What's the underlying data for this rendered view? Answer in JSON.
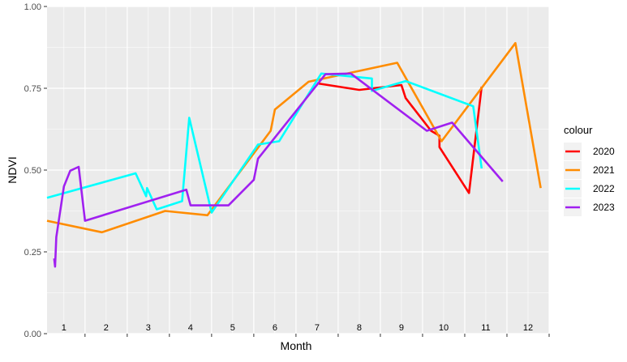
{
  "chart_data": {
    "type": "line",
    "title": "",
    "xlabel": "Month",
    "ylabel": "NDVI",
    "ylim": [
      0,
      1
    ],
    "xlim": [
      0.6,
      12.5
    ],
    "y_ticks": [
      "0.00",
      "0.25",
      "0.50",
      "0.75",
      "1.00"
    ],
    "x_ticks": [
      "1",
      "2",
      "3",
      "4",
      "5",
      "6",
      "7",
      "8",
      "9",
      "10",
      "11",
      "12"
    ],
    "grid": true,
    "legend_title": "colour",
    "legend_position": "right",
    "series": [
      {
        "name": "2020",
        "color": "#FF0000",
        "points": [
          [
            7,
            0.765
          ],
          [
            8,
            0.745
          ],
          [
            9,
            0.76
          ],
          [
            9.1,
            0.72
          ],
          [
            9.7,
            0.62
          ],
          [
            9.9,
            0.605
          ],
          [
            9.9,
            0.57
          ],
          [
            10.6,
            0.43
          ],
          [
            10.9,
            0.755
          ]
        ]
      },
      {
        "name": "2021",
        "color": "#FF8C00",
        "points": [
          [
            0.6,
            0.345
          ],
          [
            1.9,
            0.31
          ],
          [
            3.4,
            0.375
          ],
          [
            4.4,
            0.362
          ],
          [
            5.9,
            0.62
          ],
          [
            6.0,
            0.685
          ],
          [
            6.8,
            0.77
          ],
          [
            8.9,
            0.828
          ],
          [
            9.95,
            0.588
          ],
          [
            11.7,
            0.888
          ],
          [
            12.3,
            0.445
          ]
        ]
      },
      {
        "name": "2022",
        "color": "#00FFFF",
        "points": [
          [
            0.6,
            0.415
          ],
          [
            2.7,
            0.49
          ],
          [
            2.95,
            0.42
          ],
          [
            2.97,
            0.445
          ],
          [
            3.2,
            0.38
          ],
          [
            3.8,
            0.405
          ],
          [
            3.97,
            0.66
          ],
          [
            4.5,
            0.37
          ],
          [
            5.6,
            0.578
          ],
          [
            6.1,
            0.588
          ],
          [
            7.1,
            0.795
          ],
          [
            8.3,
            0.78
          ],
          [
            8.3,
            0.742
          ],
          [
            9.1,
            0.772
          ],
          [
            10.7,
            0.695
          ],
          [
            10.9,
            0.505
          ]
        ]
      },
      {
        "name": "2023",
        "color": "#A020F0",
        "points": [
          [
            0.77,
            0.23
          ],
          [
            0.79,
            0.205
          ],
          [
            0.82,
            0.295
          ],
          [
            1.0,
            0.45
          ],
          [
            1.15,
            0.498
          ],
          [
            1.35,
            0.51
          ],
          [
            1.5,
            0.345
          ],
          [
            3.9,
            0.44
          ],
          [
            4.0,
            0.392
          ],
          [
            4.9,
            0.392
          ],
          [
            5.5,
            0.47
          ],
          [
            5.6,
            0.535
          ],
          [
            7.2,
            0.793
          ],
          [
            7.8,
            0.795
          ],
          [
            9.6,
            0.62
          ],
          [
            10.2,
            0.645
          ],
          [
            11.4,
            0.465
          ]
        ]
      }
    ]
  }
}
